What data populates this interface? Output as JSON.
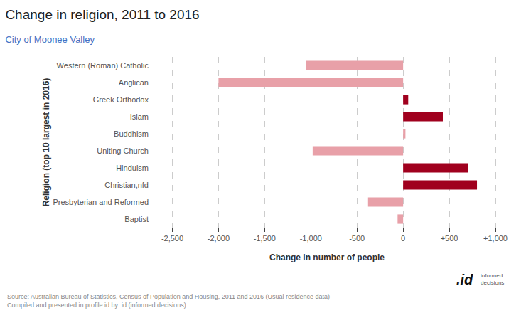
{
  "chart_data": {
    "type": "bar",
    "orientation": "horizontal",
    "title": "Change in religion, 2011 to 2016",
    "subtitle": "City of Moonee Valley",
    "xlabel": "Change in number of people",
    "ylabel": "Religion (top 10 largest in 2016)",
    "categories": [
      "Western (Roman) Catholic",
      "Anglican",
      "Greek Orthodox",
      "Islam",
      "Buddhism",
      "Uniting Church",
      "Hinduism",
      "Christian,nfd",
      "Presbyterian and Reformed",
      "Baptist"
    ],
    "values": [
      -1050,
      -2000,
      55,
      430,
      25,
      -980,
      700,
      800,
      -380,
      -60
    ],
    "colors": [
      "#e8a0a8",
      "#e8a0a8",
      "#a0001e",
      "#a0001e",
      "#e8a0a8",
      "#e8a0a8",
      "#a0001e",
      "#a0001e",
      "#e8a0a8",
      "#e8a0a8"
    ],
    "xlim": [
      -2750,
      1100
    ],
    "xticks": [
      {
        "value": -2500,
        "label": "-2,500"
      },
      {
        "value": -2000,
        "label": "-2,000"
      },
      {
        "value": -1500,
        "label": "-1,500"
      },
      {
        "value": -1000,
        "label": "-1,000"
      },
      -500,
      0,
      {
        "value": 500,
        "label": "+500"
      },
      {
        "value": 1000,
        "label": "+1,000"
      }
    ],
    "grid": true,
    "annotations": [
      "Source: Australian Bureau of Statistics, Census of Population and Housing, 2011 and 2016 (Usual residence data)\nCompiled and presented in profile.id by .id (informed decisions).",
      ".id",
      "informed\ndecisions"
    ]
  }
}
